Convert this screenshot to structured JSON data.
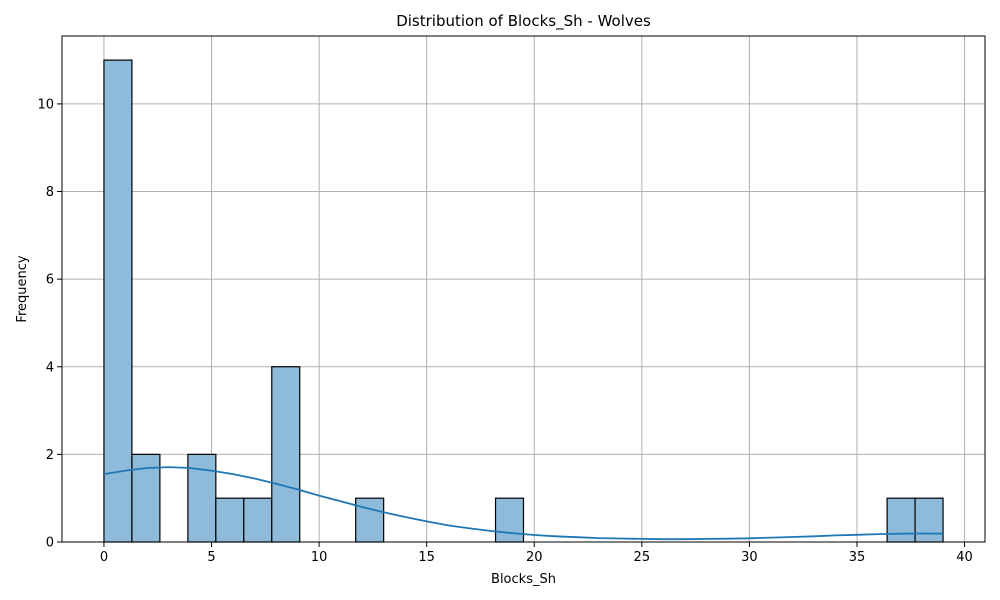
{
  "chart_data": {
    "type": "bar",
    "subtype": "histogram-with-kde",
    "title": "Distribution of Blocks_Sh - Wolves",
    "xlabel": "Blocks_Sh",
    "ylabel": "Frequency",
    "xlim": [
      -1.95,
      40.95
    ],
    "ylim": [
      0,
      11.55
    ],
    "x_ticks": [
      0,
      5,
      10,
      15,
      20,
      25,
      30,
      35,
      40
    ],
    "y_ticks": [
      0,
      2,
      4,
      6,
      8,
      10
    ],
    "grid": true,
    "bin_width": 1.3,
    "bins": [
      {
        "start": 0.0,
        "count": 11
      },
      {
        "start": 1.3,
        "count": 2
      },
      {
        "start": 3.9,
        "count": 2
      },
      {
        "start": 5.2,
        "count": 1
      },
      {
        "start": 6.5,
        "count": 1
      },
      {
        "start": 7.8,
        "count": 4
      },
      {
        "start": 11.7,
        "count": 1
      },
      {
        "start": 18.2,
        "count": 1
      },
      {
        "start": 36.4,
        "count": 1
      },
      {
        "start": 37.7,
        "count": 1
      }
    ],
    "kde": {
      "x": [
        0,
        1,
        2,
        3,
        4,
        5,
        6,
        7,
        8,
        9,
        10,
        11,
        12,
        13,
        14,
        15,
        16,
        17,
        18,
        19,
        20,
        21,
        22,
        23,
        24,
        25,
        26,
        27,
        28,
        29,
        30,
        31,
        32,
        33,
        34,
        35,
        36,
        37,
        38,
        39
      ],
      "y": [
        1.55,
        1.63,
        1.69,
        1.71,
        1.69,
        1.63,
        1.55,
        1.45,
        1.33,
        1.2,
        1.06,
        0.93,
        0.8,
        0.68,
        0.57,
        0.47,
        0.38,
        0.31,
        0.25,
        0.2,
        0.16,
        0.13,
        0.11,
        0.09,
        0.08,
        0.07,
        0.065,
        0.065,
        0.07,
        0.075,
        0.085,
        0.1,
        0.115,
        0.13,
        0.15,
        0.165,
        0.18,
        0.19,
        0.195,
        0.19
      ]
    },
    "colors": {
      "bar_fill": "#8fbbdb",
      "bar_edge": "#000000",
      "kde_line": "#1f77b4",
      "grid": "#b0b0b0"
    }
  }
}
